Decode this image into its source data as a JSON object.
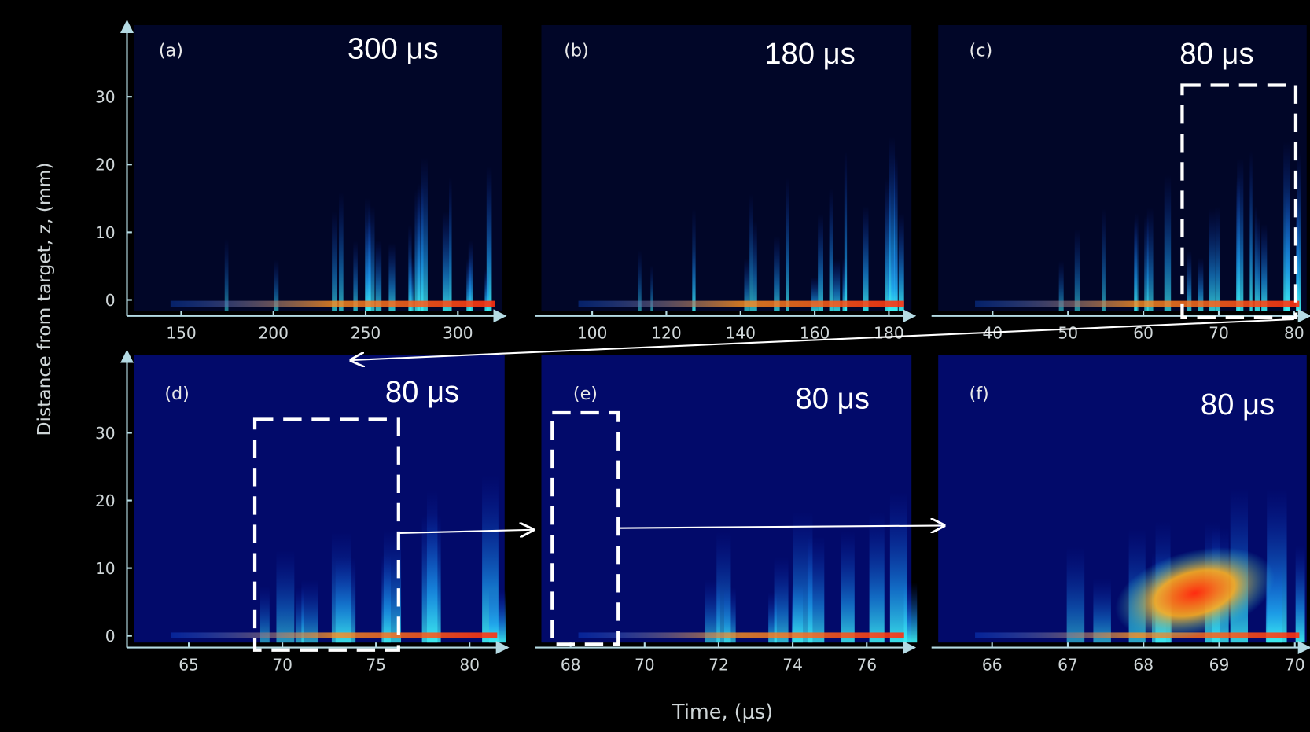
{
  "figure": {
    "ylabel": "Distance from target, z, (mm)",
    "xlabel": "Time, (μs)"
  },
  "chart_data": [
    {
      "type": "heatmap",
      "title": "(a)",
      "subtitle": "300 μs",
      "xlim": [
        120.6,
        325.8
      ],
      "xticks": [
        150,
        200,
        250,
        300
      ],
      "ylim": [
        -2.35,
        41.2
      ],
      "yticks": [
        0,
        10,
        20,
        30
      ]
    },
    {
      "type": "heatmap",
      "title": "(b)",
      "subtitle": "180 μs",
      "xlim": [
        84.5,
        187
      ],
      "xticks": [
        100,
        120,
        140,
        160,
        180
      ],
      "ylim": [
        -2.35,
        41.2
      ]
    },
    {
      "type": "heatmap",
      "title": "(c)",
      "subtitle": "80 μs",
      "xlim": [
        31.9,
        82.1
      ],
      "xticks": [
        40,
        50,
        60,
        70,
        80
      ],
      "ylim": [
        -2.35,
        41.2
      ]
    },
    {
      "type": "heatmap",
      "title": "(d)",
      "subtitle": "80 μs",
      "xlim": [
        61.7,
        82.05
      ],
      "xticks": [
        65,
        70,
        75,
        80
      ],
      "ylim": [
        -1.73,
        42.1
      ],
      "yticks": [
        0,
        10,
        20,
        30
      ]
    },
    {
      "type": "heatmap",
      "title": "(e)",
      "subtitle": "80 μs",
      "xlim": [
        67.03,
        77.3
      ],
      "xticks": [
        68,
        70,
        72,
        74,
        76
      ],
      "ylim": [
        -1.73,
        42.1
      ]
    },
    {
      "type": "heatmap",
      "title": "(f)",
      "subtitle": "80 μs",
      "xlim": [
        65.2,
        70.2
      ],
      "xticks": [
        66,
        67,
        68,
        69,
        70
      ],
      "ylim": [
        -1.73,
        42.1
      ]
    }
  ]
}
